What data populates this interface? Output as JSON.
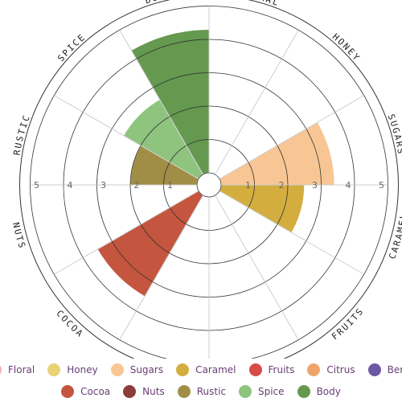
{
  "chart_data": {
    "type": "radial-bar",
    "categories": [
      "Floral",
      "Honey",
      "Sugars",
      "Caramel",
      "Fruits",
      "Citrus",
      "Berry",
      "Cocoa",
      "Nuts",
      "Rustic",
      "Spice",
      "Body"
    ],
    "values": [
      0,
      0,
      3.4,
      2.5,
      0,
      0,
      0,
      3.5,
      0,
      2,
      2.6,
      4.3
    ],
    "colors": [
      "#efb1b4",
      "#ead176",
      "#f8c694",
      "#d3ae3f",
      "#d94b47",
      "#efa46b",
      "#6d58a4",
      "#c4553e",
      "#8e3d3a",
      "#a18e46",
      "#8ec47e",
      "#64994f"
    ],
    "rlim": [
      0,
      5
    ],
    "ticks": [
      "1",
      "2",
      "3",
      "4",
      "5"
    ],
    "legend": {
      "position": "bottom"
    }
  }
}
